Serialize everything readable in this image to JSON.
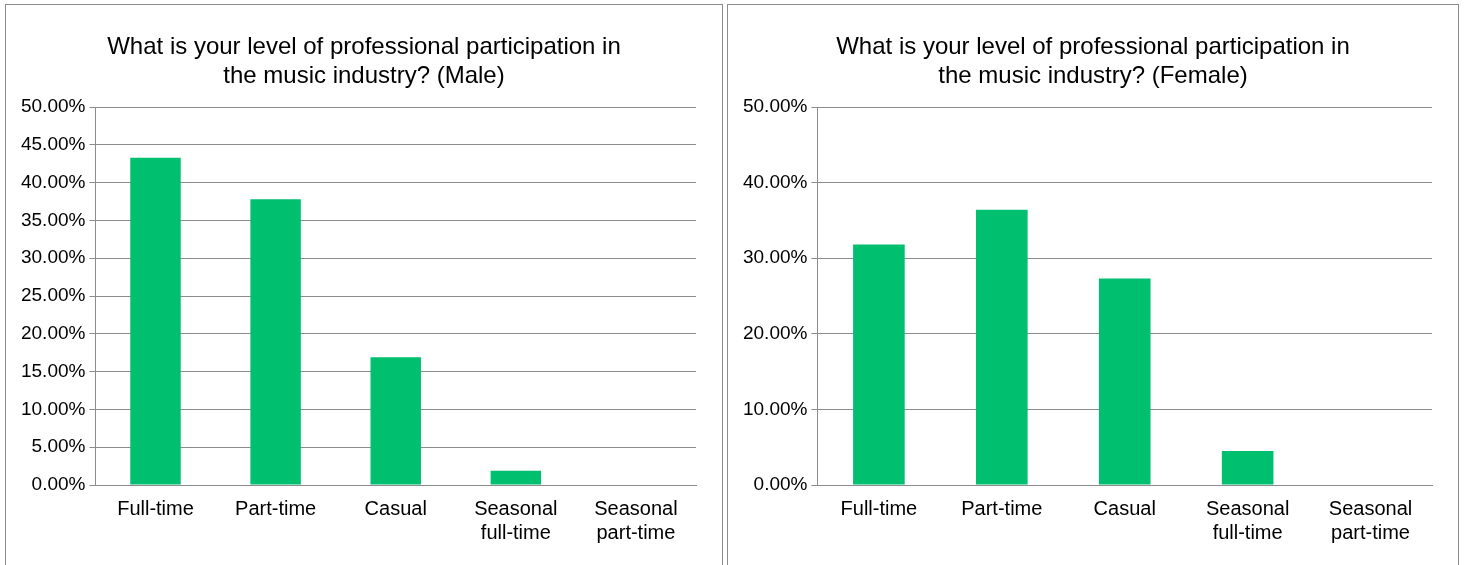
{
  "chart_data": [
    {
      "type": "bar",
      "title": "What is your level of professional participation in the music industry? (Male)",
      "categories": [
        "Full-time",
        "Part-time",
        "Casual",
        "Seasonal full-time",
        "Seasonal part-time"
      ],
      "values": [
        43.3,
        37.8,
        16.9,
        1.9,
        0
      ],
      "color": "#00bf6f",
      "ylim": [
        0,
        50
      ],
      "yticks": [
        {
          "value": 0,
          "label": "0.00%"
        },
        {
          "value": 5,
          "label": "5.00%"
        },
        {
          "value": 10,
          "label": "10.00%"
        },
        {
          "value": 15,
          "label": "15.00%"
        },
        {
          "value": 20,
          "label": "20.00%"
        },
        {
          "value": 25,
          "label": "25.00%"
        },
        {
          "value": 30,
          "label": "30.00%"
        },
        {
          "value": 35,
          "label": "35.00%"
        },
        {
          "value": 40,
          "label": "40.00%"
        },
        {
          "value": 45,
          "label": "45.00%"
        },
        {
          "value": 50,
          "label": "50.00%"
        }
      ],
      "grid": "y",
      "legend": false
    },
    {
      "type": "bar",
      "title": "What is your level of professional participation in the music industry? (Female)",
      "categories": [
        "Full-time",
        "Part-time",
        "Casual",
        "Seasonal full-time",
        "Seasonal part-time"
      ],
      "values": [
        31.8,
        36.4,
        27.3,
        4.5,
        0
      ],
      "color": "#00bf6f",
      "ylim": [
        0,
        50
      ],
      "yticks": [
        {
          "value": 0,
          "label": "0.00%"
        },
        {
          "value": 10,
          "label": "10.00%"
        },
        {
          "value": 20,
          "label": "20.00%"
        },
        {
          "value": 30,
          "label": "30.00%"
        },
        {
          "value": 40,
          "label": "40.00%"
        },
        {
          "value": 50,
          "label": "50.00%"
        }
      ],
      "grid": "y",
      "legend": false
    }
  ]
}
